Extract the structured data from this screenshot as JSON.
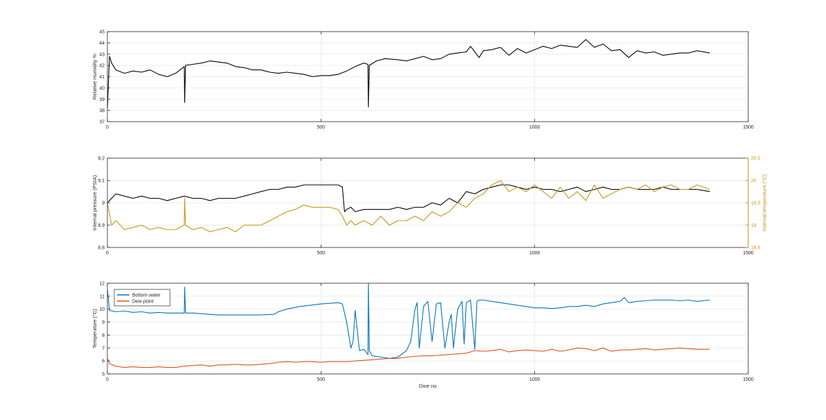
{
  "chart_data": [
    {
      "type": "line",
      "xlabel": "",
      "ylabel": "Relative Humidity %",
      "xlim": [
        0,
        1500
      ],
      "ylim": [
        37,
        45
      ],
      "xticks": [
        "0",
        "500",
        "1000",
        "1500"
      ],
      "yticks": [
        "37",
        "38",
        "39",
        "40",
        "41",
        "42",
        "43",
        "44",
        "45"
      ],
      "grid": true,
      "series": [
        {
          "name": "",
          "color": "#000000",
          "x": [
            0,
            5,
            10,
            20,
            40,
            60,
            80,
            100,
            120,
            140,
            160,
            180,
            181,
            183,
            200,
            220,
            240,
            260,
            280,
            300,
            320,
            340,
            360,
            380,
            400,
            420,
            440,
            460,
            480,
            500,
            520,
            540,
            560,
            580,
            600,
            610,
            611,
            613,
            630,
            650,
            680,
            700,
            720,
            740,
            760,
            780,
            800,
            820,
            840,
            850,
            860,
            870,
            880,
            900,
            920,
            940,
            960,
            980,
            1000,
            1020,
            1040,
            1060,
            1080,
            1100,
            1120,
            1140,
            1160,
            1180,
            1200,
            1220,
            1240,
            1260,
            1280,
            1300,
            1320,
            1340,
            1360,
            1380,
            1410
          ],
          "y": [
            38.2,
            42.8,
            42.2,
            41.6,
            41.3,
            41.5,
            41.4,
            41.6,
            41.2,
            41.0,
            41.3,
            41.9,
            38.7,
            42.0,
            42.1,
            42.2,
            42.4,
            42.3,
            42.2,
            41.9,
            41.8,
            41.6,
            41.6,
            41.4,
            41.3,
            41.4,
            41.3,
            41.2,
            41.0,
            41.1,
            41.1,
            41.2,
            41.5,
            41.9,
            42.2,
            42.1,
            38.3,
            42.0,
            42.4,
            42.6,
            42.5,
            42.4,
            42.6,
            42.8,
            42.5,
            42.6,
            43.0,
            43.1,
            43.2,
            43.7,
            43.2,
            42.7,
            43.3,
            43.4,
            43.6,
            42.9,
            43.5,
            43.1,
            43.4,
            43.7,
            43.5,
            43.8,
            43.7,
            43.6,
            44.3,
            43.6,
            43.9,
            43.3,
            43.4,
            42.7,
            43.3,
            43.1,
            43.2,
            42.9,
            43.0,
            43.1,
            43.1,
            43.3,
            43.1
          ]
        }
      ]
    },
    {
      "type": "line",
      "xlabel": "",
      "ylabel": "Internal pressure (PSIA)",
      "y2label": "Internal temperature (°C)",
      "xlim": [
        0,
        1500
      ],
      "ylim": [
        8.8,
        9.2
      ],
      "y2lim": [
        18.5,
        20.5
      ],
      "xticks": [
        "0",
        "500",
        "1000",
        "1500"
      ],
      "yticks": [
        "8.8",
        "8.9",
        "9",
        "9.1",
        "9.2"
      ],
      "y2ticks": [
        "18.5",
        "19",
        "19.5",
        "20",
        "20.5"
      ],
      "grid": true,
      "series": [
        {
          "name": "",
          "axis": "left",
          "color": "#000000",
          "x": [
            0,
            10,
            20,
            40,
            60,
            80,
            100,
            120,
            140,
            160,
            180,
            200,
            220,
            240,
            260,
            280,
            300,
            320,
            340,
            360,
            380,
            400,
            420,
            440,
            460,
            480,
            500,
            520,
            540,
            550,
            555,
            560,
            570,
            580,
            600,
            620,
            640,
            660,
            680,
            700,
            720,
            740,
            760,
            780,
            800,
            820,
            840,
            860,
            880,
            900,
            920,
            940,
            960,
            980,
            1000,
            1020,
            1040,
            1060,
            1080,
            1100,
            1120,
            1140,
            1160,
            1180,
            1200,
            1220,
            1240,
            1260,
            1280,
            1300,
            1320,
            1340,
            1360,
            1380,
            1410
          ],
          "y": [
            9.0,
            9.02,
            9.04,
            9.03,
            9.02,
            9.03,
            9.02,
            9.02,
            9.01,
            9.02,
            9.03,
            9.02,
            9.02,
            9.01,
            9.02,
            9.02,
            9.02,
            9.03,
            9.04,
            9.05,
            9.06,
            9.06,
            9.07,
            9.07,
            9.08,
            9.08,
            9.08,
            9.08,
            9.08,
            9.07,
            8.96,
            8.97,
            8.98,
            8.96,
            8.97,
            8.97,
            8.97,
            8.97,
            8.98,
            8.97,
            8.98,
            8.98,
            9.0,
            8.99,
            9.02,
            9.0,
            9.05,
            9.04,
            9.06,
            9.07,
            9.08,
            9.08,
            9.07,
            9.06,
            9.07,
            9.06,
            9.06,
            9.05,
            9.06,
            9.07,
            9.05,
            9.06,
            9.07,
            9.06,
            9.06,
            9.07,
            9.06,
            9.06,
            9.06,
            9.07,
            9.06,
            9.06,
            9.06,
            9.06,
            9.05
          ]
        },
        {
          "name": "",
          "axis": "right",
          "color": "#C89414",
          "x": [
            0,
            10,
            20,
            40,
            60,
            80,
            100,
            120,
            140,
            160,
            180,
            181,
            183,
            200,
            220,
            240,
            260,
            280,
            300,
            320,
            340,
            360,
            380,
            400,
            420,
            440,
            460,
            480,
            500,
            520,
            540,
            550,
            560,
            570,
            580,
            600,
            620,
            640,
            660,
            680,
            700,
            720,
            740,
            760,
            780,
            800,
            820,
            840,
            860,
            880,
            900,
            920,
            940,
            960,
            980,
            1000,
            1020,
            1040,
            1060,
            1080,
            1100,
            1120,
            1140,
            1160,
            1180,
            1200,
            1220,
            1240,
            1260,
            1280,
            1300,
            1320,
            1340,
            1360,
            1380,
            1410
          ],
          "y": [
            19.5,
            19.0,
            19.1,
            18.9,
            18.95,
            19.0,
            18.9,
            18.95,
            18.9,
            18.9,
            19.0,
            19.6,
            19.0,
            18.9,
            18.95,
            18.85,
            18.9,
            18.95,
            18.85,
            19.0,
            19.0,
            19.0,
            19.1,
            19.2,
            19.3,
            19.35,
            19.45,
            19.4,
            19.4,
            19.4,
            19.35,
            19.2,
            19.0,
            19.1,
            19.0,
            19.1,
            19.0,
            19.2,
            19.0,
            19.1,
            19.1,
            19.2,
            19.1,
            19.3,
            19.2,
            19.3,
            19.5,
            19.4,
            19.6,
            19.7,
            19.9,
            20.0,
            19.75,
            19.85,
            19.75,
            19.9,
            19.75,
            19.6,
            19.85,
            19.6,
            19.75,
            19.55,
            19.9,
            19.6,
            19.7,
            19.8,
            19.85,
            19.8,
            19.9,
            19.75,
            19.85,
            19.9,
            19.8,
            19.8,
            19.9,
            19.8
          ]
        }
      ]
    },
    {
      "type": "line",
      "xlabel": "Dive no",
      "ylabel": "Temperature (°C)",
      "xlim": [
        0,
        1500
      ],
      "ylim": [
        5,
        12
      ],
      "xticks": [
        "0",
        "500",
        "1000",
        "1500"
      ],
      "yticks": [
        "5",
        "6",
        "7",
        "8",
        "9",
        "10",
        "11",
        "12"
      ],
      "grid": true,
      "legend": "top-left",
      "series": [
        {
          "name": "Bottom water",
          "color": "#0072BD",
          "x": [
            0,
            5,
            20,
            40,
            60,
            80,
            100,
            120,
            140,
            160,
            180,
            181,
            183,
            200,
            220,
            240,
            260,
            300,
            350,
            390,
            400,
            420,
            450,
            500,
            540,
            550,
            560,
            570,
            575,
            580,
            590,
            600,
            610,
            611,
            613,
            620,
            640,
            660,
            680,
            700,
            710,
            720,
            725,
            730,
            740,
            750,
            760,
            770,
            780,
            790,
            800,
            805,
            810,
            820,
            830,
            835,
            840,
            850,
            860,
            865,
            870,
            880,
            900,
            920,
            940,
            960,
            980,
            1000,
            1020,
            1040,
            1060,
            1080,
            1100,
            1120,
            1140,
            1160,
            1180,
            1200,
            1210,
            1220,
            1240,
            1260,
            1280,
            1300,
            1320,
            1340,
            1360,
            1380,
            1410
          ],
          "y": [
            11.5,
            9.9,
            9.8,
            9.85,
            9.75,
            9.8,
            9.7,
            9.75,
            9.7,
            9.7,
            9.7,
            11.7,
            9.7,
            9.7,
            9.65,
            9.6,
            9.55,
            9.55,
            9.55,
            9.6,
            9.8,
            10.0,
            10.2,
            10.4,
            10.5,
            10.4,
            9.0,
            7.0,
            7.5,
            9.9,
            6.8,
            6.9,
            6.5,
            12.0,
            6.8,
            6.4,
            6.3,
            6.2,
            6.3,
            6.8,
            7.5,
            10.0,
            10.5,
            7.0,
            10.2,
            10.6,
            7.5,
            10.4,
            10.5,
            7.0,
            9.0,
            9.6,
            7.0,
            10.0,
            10.6,
            7.3,
            10.5,
            10.7,
            6.9,
            10.6,
            10.7,
            10.7,
            10.6,
            10.5,
            10.4,
            10.3,
            10.2,
            10.1,
            10.1,
            10.05,
            10.1,
            10.2,
            10.2,
            10.3,
            10.2,
            10.4,
            10.5,
            10.6,
            10.9,
            10.5,
            10.6,
            10.65,
            10.7,
            10.7,
            10.7,
            10.65,
            10.7,
            10.6,
            10.7
          ]
        },
        {
          "name": "Dew point",
          "color": "#D95319",
          "x": [
            0,
            5,
            20,
            40,
            60,
            80,
            100,
            120,
            140,
            160,
            180,
            200,
            220,
            240,
            260,
            280,
            300,
            320,
            340,
            360,
            380,
            400,
            420,
            440,
            460,
            480,
            500,
            520,
            540,
            560,
            580,
            600,
            620,
            640,
            660,
            680,
            700,
            720,
            740,
            760,
            780,
            800,
            820,
            840,
            860,
            880,
            900,
            920,
            940,
            960,
            980,
            1000,
            1020,
            1040,
            1060,
            1080,
            1100,
            1120,
            1140,
            1160,
            1180,
            1200,
            1220,
            1240,
            1260,
            1280,
            1300,
            1320,
            1340,
            1360,
            1380,
            1410
          ],
          "y": [
            6.2,
            5.8,
            5.6,
            5.5,
            5.55,
            5.5,
            5.5,
            5.55,
            5.5,
            5.5,
            5.6,
            5.65,
            5.7,
            5.6,
            5.7,
            5.7,
            5.75,
            5.7,
            5.7,
            5.75,
            5.8,
            5.9,
            5.95,
            5.9,
            5.95,
            5.95,
            5.9,
            5.95,
            5.95,
            5.95,
            6.0,
            6.05,
            6.1,
            6.15,
            6.2,
            6.2,
            6.3,
            6.35,
            6.4,
            6.4,
            6.45,
            6.5,
            6.55,
            6.6,
            6.8,
            6.75,
            6.8,
            6.9,
            6.7,
            6.8,
            6.85,
            6.8,
            6.75,
            6.9,
            6.75,
            6.85,
            7.0,
            6.95,
            6.8,
            7.0,
            6.75,
            6.85,
            6.85,
            6.9,
            6.95,
            6.85,
            6.9,
            6.95,
            7.0,
            6.95,
            6.9,
            6.9
          ]
        }
      ]
    }
  ]
}
